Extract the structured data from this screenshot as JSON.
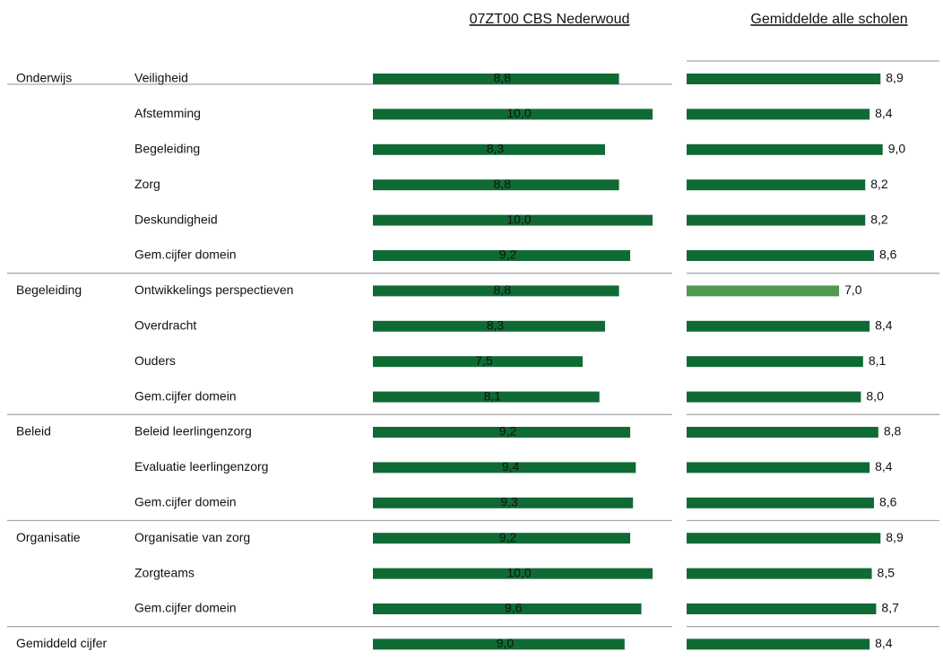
{
  "chart_data": {
    "type": "bar",
    "orientation": "horizontal",
    "group_labels": [
      "Onderwijs",
      null,
      null,
      null,
      null,
      null,
      "Begeleiding",
      null,
      null,
      null,
      "Beleid",
      null,
      null,
      "Organisatie",
      null,
      null,
      "Gemiddeld cijfer"
    ],
    "categories": [
      "Veiligheid",
      "Afstemming",
      "Begeleiding",
      "Zorg",
      "Deskundigheid",
      "Gem.cijfer domein",
      "Ontwikkelings perspectieven",
      "Overdracht",
      "Ouders",
      "Gem.cijfer domein",
      "Beleid leerlingenzorg",
      "Evaluatie leerlingenzorg",
      "Gem.cijfer domein",
      "Organisatie van zorg",
      "Zorgteams",
      "Gem.cijfer domein",
      null
    ],
    "series": [
      {
        "name": "07ZT00  CBS  Nederwoud",
        "color": "#0f6a34",
        "xlim": [
          0,
          10
        ],
        "values": [
          8.8,
          10.0,
          8.3,
          8.8,
          10.0,
          9.2,
          8.8,
          8.3,
          7.5,
          8.1,
          9.2,
          9.4,
          9.3,
          9.2,
          10.0,
          9.6,
          9.0
        ],
        "value_labels": [
          "8,8",
          "10,0",
          "8,3",
          "8,8",
          "10,0",
          "9,2",
          "8,8",
          "8,3",
          "7,5",
          "8,1",
          "9,2",
          "9,4",
          "9,3",
          "9,2",
          "10,0",
          "9,6",
          "9,0"
        ]
      },
      {
        "name": "Gemiddelde  alle  scholen",
        "xlim": [
          0,
          10
        ],
        "colors": [
          "#0f6a34",
          "#0f6a34",
          "#0f6a34",
          "#0f6a34",
          "#0f6a34",
          "#0f6a34",
          "#4f9a50",
          "#0f6a34",
          "#0f6a34",
          "#0f6a34",
          "#0f6a34",
          "#0f6a34",
          "#0f6a34",
          "#0f6a34",
          "#0f6a34",
          "#0f6a34",
          "#0f6a34"
        ],
        "values": [
          8.9,
          8.4,
          9.0,
          8.2,
          8.2,
          8.6,
          7.0,
          8.4,
          8.1,
          8.0,
          8.8,
          8.4,
          8.6,
          8.9,
          8.5,
          8.7,
          8.4
        ],
        "value_labels": [
          "8,9",
          "8,4",
          "9,0",
          "8,2",
          "8,2",
          "8,6",
          "7,0",
          "8,4",
          "8,1",
          "8,0",
          "8,8",
          "8,4",
          "8,6",
          "8,9",
          "8,5",
          "8,7",
          "8,4"
        ]
      }
    ]
  }
}
